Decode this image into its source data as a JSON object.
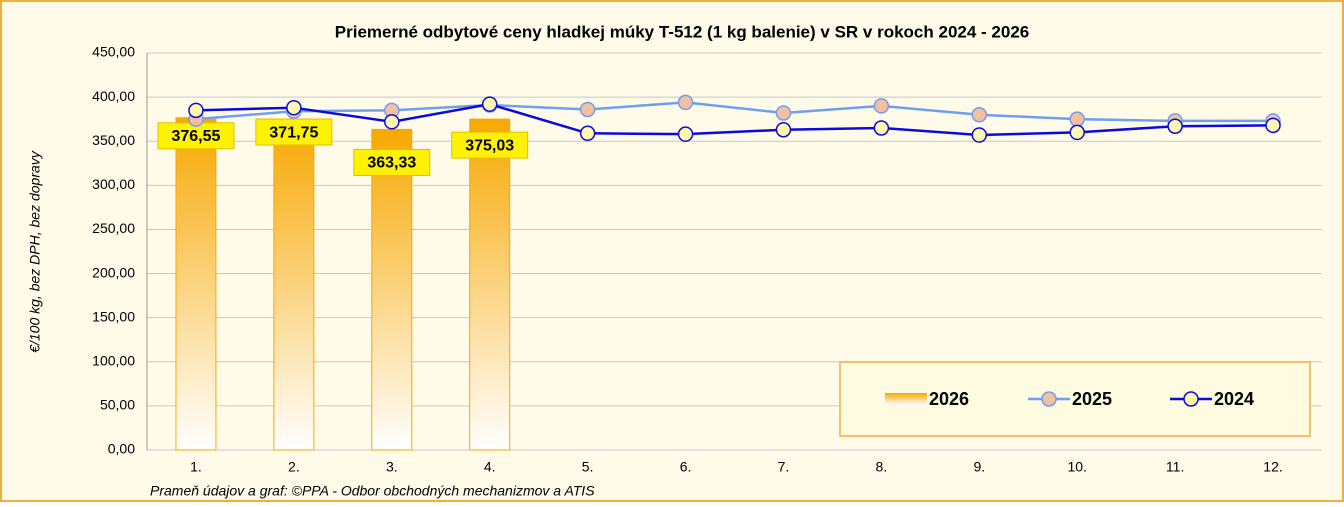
{
  "chart_data": {
    "type": "bar",
    "title": "Priemerné odbytové ceny hladkej múky T-512 (1 kg balenie) v SR v rokoch 2024 - 2026",
    "y_label": "€/100 kg, bez DPH, bez dopravy",
    "source": "Prameň údajov a graf: ©PPA - Odbor obchodných mechanizmov a ATIS",
    "categories": [
      "1.",
      "2.",
      "3.",
      "4.",
      "5.",
      "6.",
      "7.",
      "8.",
      "9.",
      "10.",
      "11.",
      "12."
    ],
    "series": [
      {
        "name": "2026",
        "type": "bar",
        "color": "#f7a800",
        "values": [
          376.55,
          371.75,
          363.33,
          375.03,
          null,
          null,
          null,
          null,
          null,
          null,
          null,
          null
        ],
        "value_labels": [
          "376,55",
          "371,75",
          "363,33",
          "375,03",
          null,
          null,
          null,
          null,
          null,
          null,
          null,
          null
        ]
      },
      {
        "name": "2025",
        "type": "line",
        "color": "#6e9ef0",
        "marker_color": "#f5c0a0",
        "values": [
          375,
          384,
          385,
          391,
          386,
          394,
          382,
          390,
          380,
          375,
          373,
          373
        ]
      },
      {
        "name": "2024",
        "type": "line",
        "color": "#0a0adc",
        "marker_color": "#fff9b0",
        "values": [
          385,
          388,
          372,
          392,
          359,
          358,
          363,
          365,
          357,
          360,
          367,
          368
        ]
      }
    ],
    "ylim": [
      0,
      450
    ],
    "yticks": [
      {
        "value": 0,
        "label": "0,00"
      },
      {
        "value": 50,
        "label": "50,00"
      },
      {
        "value": 100,
        "label": "100,00"
      },
      {
        "value": 150,
        "label": "150,00"
      },
      {
        "value": 200,
        "label": "200,00"
      },
      {
        "value": 250,
        "label": "250,00"
      },
      {
        "value": 300,
        "label": "300,00"
      },
      {
        "value": 350,
        "label": "350,00"
      },
      {
        "value": 400,
        "label": "400,00"
      },
      {
        "value": 450,
        "label": "450,00"
      }
    ],
    "grid": true,
    "legend": "lower right"
  }
}
